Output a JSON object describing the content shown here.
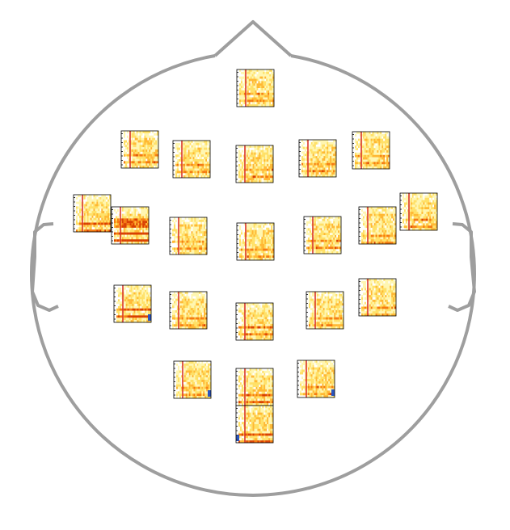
{
  "figure": {
    "type": "topographic-time-frequency-map",
    "head_outline_color": "#9e9e9e",
    "colormap": [
      "#ffffff",
      "#fff6b0",
      "#ffe066",
      "#ffb833",
      "#f57a10",
      "#d94000"
    ],
    "negative_color": "#2a55c0",
    "event_marker_color": "#d9342b",
    "panel_count": 24
  }
}
